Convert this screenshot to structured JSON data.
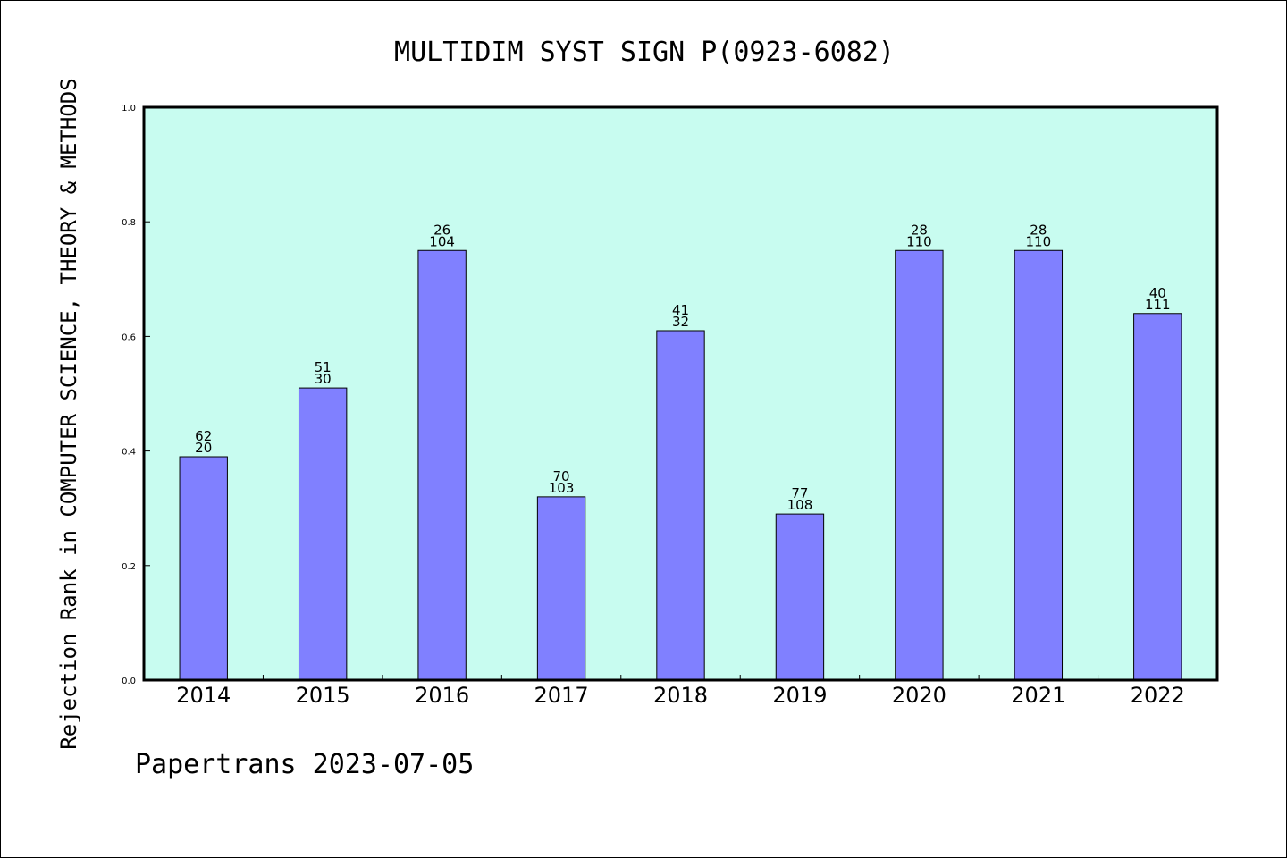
{
  "chart_data": {
    "type": "bar",
    "title": "MULTIDIM SYST SIGN P(0923-6082)",
    "xlabel": "",
    "ylabel": "Rejection Rank in COMPUTER SCIENCE, THEORY & METHODS",
    "ylim": [
      0,
      1.0
    ],
    "yticks": [
      "0.0",
      "0.2",
      "0.4",
      "0.6",
      "0.8",
      "1.0"
    ],
    "categories": [
      "2014",
      "2015",
      "2016",
      "2017",
      "2018",
      "2019",
      "2020",
      "2021",
      "2022"
    ],
    "values": [
      0.39,
      0.51,
      0.75,
      0.32,
      0.61,
      0.29,
      0.75,
      0.75,
      0.64
    ],
    "labels_top": [
      "62",
      "51",
      "26",
      "70",
      "41",
      "77",
      "28",
      "28",
      "40"
    ],
    "labels_bottom": [
      "20",
      "30",
      "104",
      "103",
      "32",
      "108",
      "110",
      "110",
      "111"
    ],
    "grid": false,
    "colors": {
      "plot_background": "#c8fcf0",
      "bar_fill": "#8080ff",
      "bar_stroke": "#000000"
    }
  },
  "footer": "Papertrans 2023-07-05"
}
